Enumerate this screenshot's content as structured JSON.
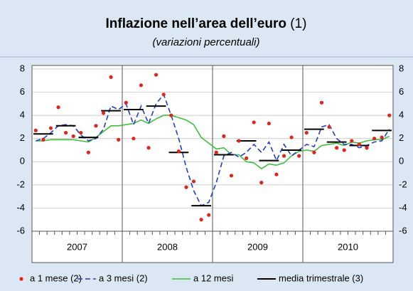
{
  "chart_data": {
    "type": "line",
    "title": "Inflazione nell’area dell’euro",
    "title_note": "(1)",
    "subtitle": "(variazioni percentuali)",
    "year_labels": [
      "2007",
      "2008",
      "2009",
      "2010"
    ],
    "ylim": [
      -6,
      8
    ],
    "yticks": [
      -6,
      -4,
      -2,
      0,
      2,
      4,
      6,
      8
    ],
    "grid": true,
    "series": [
      {
        "name": "a 1 mese (2)",
        "color": "#e2231a",
        "style": "dots",
        "values": [
          2.7,
          1.9,
          2.9,
          4.7,
          2.5,
          2.2,
          2.5,
          0.8,
          3.1,
          4.2,
          7.3,
          1.9,
          5.1,
          2.0,
          6.6,
          1.2,
          7.5,
          5.8,
          4.0,
          0.9,
          -2.2,
          -1.7,
          -5.0,
          -4.6,
          0.8,
          2.2,
          -1.2,
          1.8,
          0.3,
          3.4,
          -1.8,
          3.3,
          -1.1,
          0.5,
          2.1,
          0.5,
          2.5,
          0.8,
          5.1,
          3.0,
          1.2,
          1.0,
          1.8,
          1.5,
          1.2,
          2.0,
          2.1,
          4.0
        ]
      },
      {
        "name": "a 3 mesi (2)",
        "color": "#1f3fc9",
        "style": "dashed",
        "values": [
          1.8,
          2.0,
          2.5,
          3.1,
          3.2,
          3.1,
          2.3,
          1.8,
          2.0,
          2.8,
          4.8,
          4.5,
          5.0,
          3.2,
          4.8,
          3.3,
          5.0,
          5.8,
          4.0,
          2.0,
          -0.5,
          -2.5,
          -3.8,
          -3.5,
          -1.8,
          0.5,
          0.8,
          0.4,
          0.8,
          1.5,
          0.8,
          1.7,
          0.1,
          1.5,
          0.5,
          1.0,
          1.5,
          1.3,
          3.0,
          3.2,
          2.0,
          1.5,
          1.5,
          1.2,
          1.4,
          1.7,
          1.8,
          2.8
        ]
      },
      {
        "name": "a 12 mesi",
        "color": "#3fbf3a",
        "style": "solid",
        "values": [
          1.8,
          1.8,
          1.9,
          1.9,
          1.9,
          1.9,
          1.8,
          1.7,
          2.1,
          2.6,
          3.1,
          3.1,
          3.2,
          3.3,
          3.6,
          3.3,
          3.7,
          4.0,
          4.0,
          3.8,
          3.6,
          3.2,
          2.1,
          1.6,
          1.1,
          1.2,
          0.6,
          0.6,
          0.0,
          -0.1,
          -0.6,
          -0.2,
          -0.3,
          -0.1,
          0.5,
          0.9,
          1.0,
          0.9,
          1.4,
          1.5,
          1.6,
          1.4,
          1.7,
          1.6,
          1.8,
          1.9,
          1.9,
          2.2
        ]
      },
      {
        "name": "media trimestrale (3)",
        "color": "#000000",
        "style": "quarterly",
        "values": [
          2.4,
          3.1,
          2.1,
          4.4,
          4.5,
          4.8,
          0.8,
          -3.8,
          0.6,
          1.8,
          0.1,
          1.0,
          2.8,
          1.7,
          1.4,
          2.7
        ]
      }
    ]
  }
}
